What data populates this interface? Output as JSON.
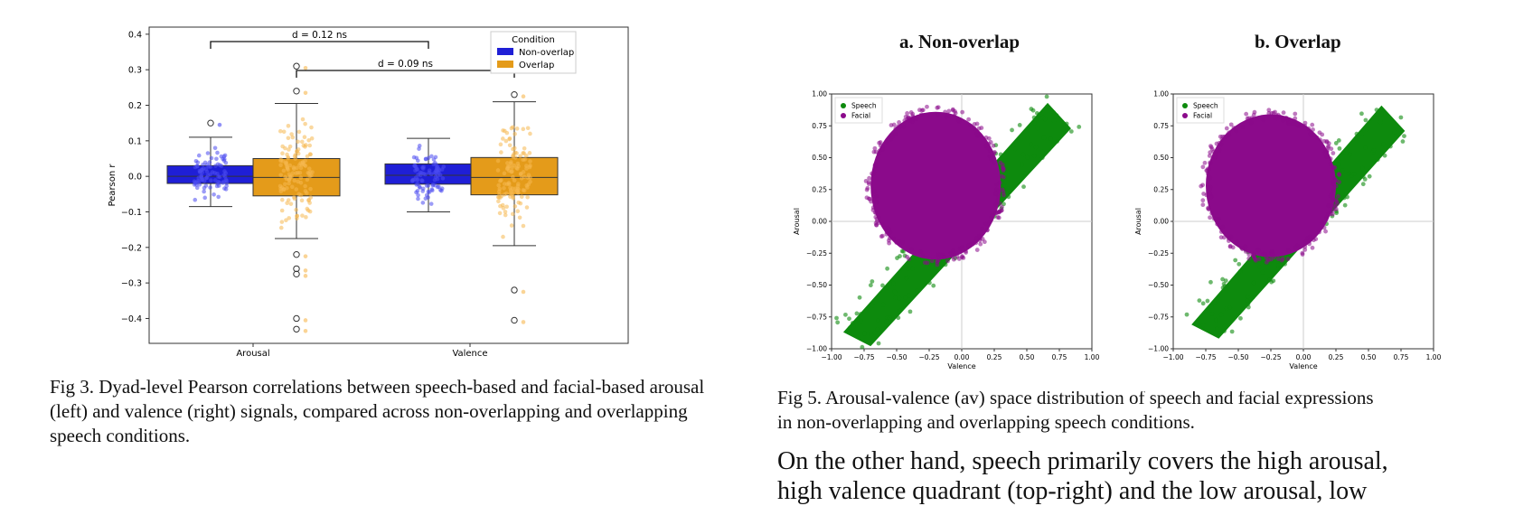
{
  "fig3": {
    "caption": "Fig 3. Dyad-level Pearson correlations between speech-based and facial-based arousal (left) and valence (right) signals, compared across non-overlapping and overlapping speech conditions."
  },
  "fig5": {
    "caption_line1": "Fig 5. Arousal-valence (av) space distribution of speech and facial expressions",
    "caption_line2": "in non-overlapping and overlapping speech conditions."
  },
  "body_text": {
    "line1": "On the other hand, speech primarily covers the high arousal,",
    "line2": "high valence quadrant (top-right) and the low arousal, low"
  },
  "colors": {
    "non_overlap": "#1f1fd6",
    "overlap": "#e49b1a",
    "speech": "#0d8a0d",
    "facial": "#8b0a8b"
  },
  "chart_data": [
    {
      "type": "box",
      "title": "",
      "xlabel": "",
      "ylabel": "Pearson r",
      "ylim": [
        -0.47,
        0.42
      ],
      "yticks": [
        "0.4",
        "0.3",
        "0.2",
        "0.1",
        "0.0",
        "−0.1",
        "−0.2",
        "−0.3",
        "−0.4"
      ],
      "categories": [
        "Arousal",
        "Valence"
      ],
      "legend": {
        "title": "Condition",
        "position": "top-right",
        "entries": [
          "Non-overlap",
          "Overlap"
        ]
      },
      "series": [
        {
          "name": "Non-overlap",
          "boxes": [
            {
              "q1": -0.02,
              "median": 0.0,
              "q3": 0.03,
              "whisker_low": -0.085,
              "whisker_high": 0.11,
              "outliers": [
                0.15
              ]
            },
            {
              "q1": -0.022,
              "median": 0.003,
              "q3": 0.035,
              "whisker_low": -0.1,
              "whisker_high": 0.107,
              "outliers": []
            }
          ]
        },
        {
          "name": "Overlap",
          "boxes": [
            {
              "q1": -0.055,
              "median": -0.003,
              "q3": 0.05,
              "whisker_low": -0.175,
              "whisker_high": 0.205,
              "outliers": [
                0.31,
                0.24,
                -0.22,
                -0.26,
                -0.275,
                -0.4,
                -0.43
              ]
            },
            {
              "q1": -0.052,
              "median": -0.003,
              "q3": 0.053,
              "whisker_low": -0.195,
              "whisker_high": 0.21,
              "outliers": [
                0.23,
                -0.32,
                -0.405
              ]
            }
          ]
        }
      ],
      "annotations": [
        {
          "text": "d = 0.12 ns",
          "from": "Arousal / Non-overlap",
          "to": "Valence / Non-overlap"
        },
        {
          "text": "d = 0.09 ns",
          "from": "Arousal / Overlap",
          "to": "Valence / Overlap"
        }
      ]
    },
    {
      "type": "scatter",
      "title": "a. Non-overlap",
      "xlabel": "Valence",
      "ylabel": "Arousal",
      "xlim": [
        -1.0,
        1.0
      ],
      "ylim": [
        -1.0,
        1.0
      ],
      "xticks": [
        "−1.00",
        "−0.75",
        "−0.50",
        "−0.25",
        "0.00",
        "0.25",
        "0.50",
        "0.75",
        "1.00"
      ],
      "yticks": [
        "1.00",
        "0.75",
        "0.50",
        "0.25",
        "0.00",
        "−0.25",
        "−0.50",
        "−0.75",
        "−1.00"
      ],
      "legend": {
        "position": "top-left",
        "entries": [
          "Speech",
          "Facial"
        ]
      },
      "series": [
        {
          "name": "Speech",
          "shape": "diagonal band from (-0.85,-0.90) to (0.75,0.85)"
        },
        {
          "name": "Facial",
          "shape": "blob centered near (-0.2,0.3), valence -0.70 to 0.30, arousal -0.35 to 0.85"
        }
      ]
    },
    {
      "type": "scatter",
      "title": "b. Overlap",
      "xlabel": "Valence",
      "ylabel": "Arousal",
      "xlim": [
        -1.0,
        1.0
      ],
      "ylim": [
        -1.0,
        1.0
      ],
      "xticks": [
        "−1.00",
        "−0.75",
        "−0.50",
        "−0.25",
        "0.00",
        "0.25",
        "0.50",
        "0.75",
        "1.00"
      ],
      "yticks": [
        "1.00",
        "0.75",
        "0.50",
        "0.25",
        "0.00",
        "−0.25",
        "−0.50",
        "−0.75",
        "−1.00"
      ],
      "legend": {
        "position": "top-left",
        "entries": [
          "Speech",
          "Facial"
        ]
      },
      "series": [
        {
          "name": "Speech",
          "shape": "diagonal band from (-0.80,-0.85) to (0.72,0.85)"
        },
        {
          "name": "Facial",
          "shape": "blob centered near (-0.25,0.3), valence -0.75 to 0.25, arousal -0.30 to 0.80"
        }
      ]
    }
  ]
}
